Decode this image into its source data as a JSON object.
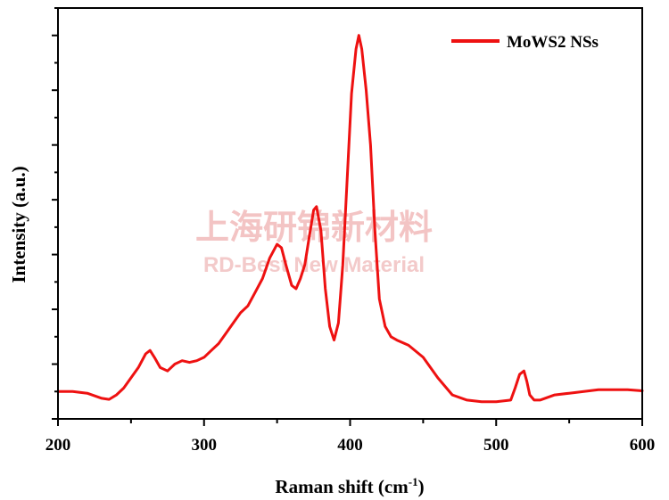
{
  "watermark": {
    "line1": "上海研锦新材料",
    "line2": "RD-Best New Material"
  },
  "chart_data": {
    "type": "line",
    "title": "",
    "xlabel": "Raman shift (cm",
    "xlabel_sup": "-1",
    "xlabel_close": ")",
    "ylabel": "Intensity (a.u.)",
    "xlim": [
      200,
      600
    ],
    "xticks": [
      200,
      300,
      400,
      500,
      600
    ],
    "y_ticks_labeled": false,
    "grid": false,
    "legend_position": "top-right",
    "series": [
      {
        "name": "MoWS2 NSs",
        "color": "#ee1111",
        "x": [
          200,
          210,
          220,
          230,
          235,
          240,
          245,
          250,
          255,
          260,
          263,
          266,
          270,
          275,
          280,
          285,
          290,
          295,
          300,
          305,
          310,
          315,
          320,
          325,
          330,
          335,
          340,
          345,
          350,
          353,
          356,
          360,
          363,
          366,
          369,
          372,
          375,
          377,
          380,
          383,
          386,
          389,
          392,
          395,
          398,
          401,
          404,
          406,
          408,
          411,
          414,
          417,
          420,
          424,
          428,
          432,
          440,
          450,
          460,
          470,
          480,
          490,
          500,
          510,
          513,
          516,
          519,
          521,
          523,
          526,
          530,
          540,
          550,
          560,
          570,
          580,
          590,
          600
        ],
        "y": [
          0.08,
          0.08,
          0.075,
          0.06,
          0.057,
          0.07,
          0.09,
          0.12,
          0.15,
          0.19,
          0.2,
          0.18,
          0.15,
          0.14,
          0.16,
          0.17,
          0.165,
          0.17,
          0.18,
          0.2,
          0.22,
          0.25,
          0.28,
          0.31,
          0.33,
          0.37,
          0.41,
          0.47,
          0.51,
          0.5,
          0.45,
          0.39,
          0.38,
          0.41,
          0.45,
          0.53,
          0.61,
          0.62,
          0.55,
          0.38,
          0.27,
          0.23,
          0.28,
          0.45,
          0.7,
          0.95,
          1.08,
          1.12,
          1.08,
          0.96,
          0.8,
          0.55,
          0.35,
          0.27,
          0.24,
          0.23,
          0.215,
          0.18,
          0.12,
          0.07,
          0.055,
          0.05,
          0.05,
          0.055,
          0.09,
          0.13,
          0.14,
          0.11,
          0.07,
          0.055,
          0.055,
          0.07,
          0.075,
          0.08,
          0.085,
          0.085,
          0.085,
          0.082
        ]
      }
    ]
  }
}
